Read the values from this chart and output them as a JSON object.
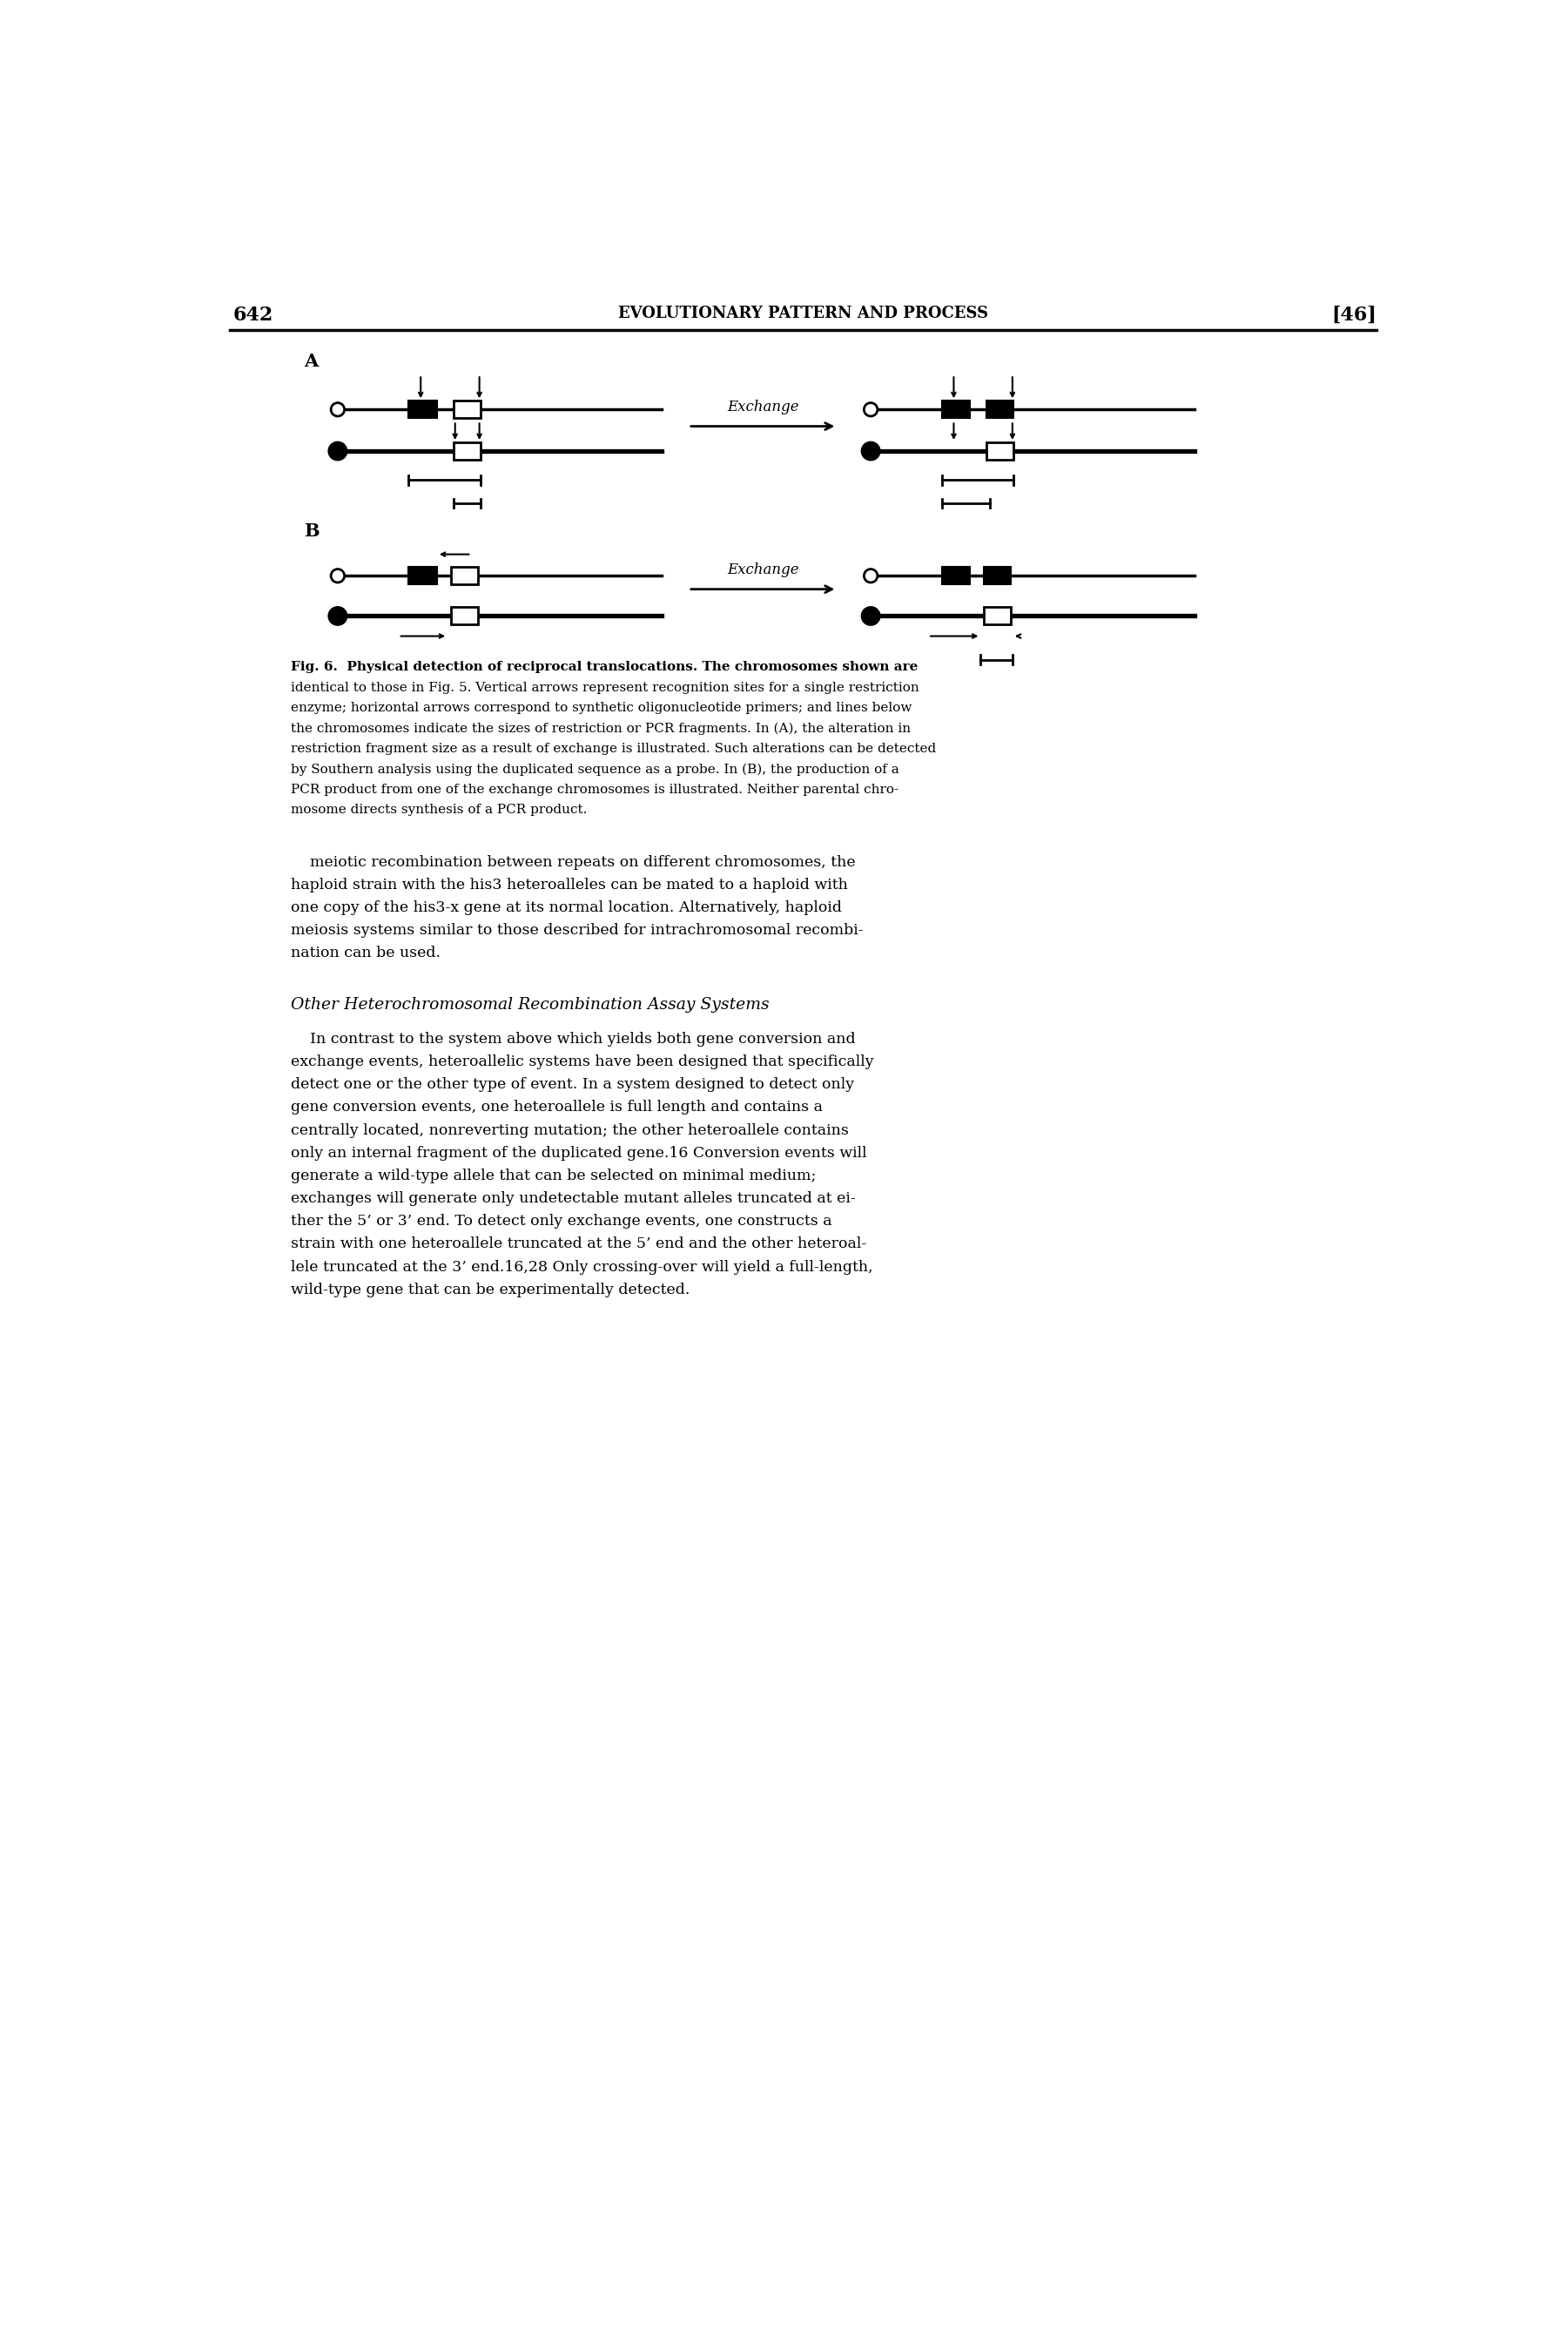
{
  "page_number_left": "642",
  "page_number_right": "[46]",
  "header_text": "EVOLUTIONARY PATTERN AND PROCESS",
  "section_title": "Other Heterochromosomal Recombination Assay Systems",
  "background_color": "#ffffff",
  "text_color": "#000000",
  "fig_caption_lines": [
    "Fig. 6.  Physical detection of reciprocal translocations. The chromosomes shown are",
    "identical to those in Fig. 5. Vertical arrows represent recognition sites for a single restriction",
    "enzyme; horizontal arrows correspond to synthetic oligonucleotide primers; and lines below",
    "the chromosomes indicate the sizes of restriction or PCR fragments. In (A), the alteration in",
    "restriction fragment size as a result of exchange is illustrated. Such alterations can be detected",
    "by Southern analysis using the duplicated sequence as a probe. In (B), the production of a",
    "PCR product from one of the exchange chromosomes is illustrated. Neither parental chro-",
    "mosome directs synthesis of a PCR product."
  ],
  "body1_lines": [
    "meiotic recombination between repeats on different chromosomes, the",
    "haploid strain with the his3 heteroalleles can be mated to a haploid with",
    "one copy of the his3-x gene at its normal location. Alternatively, haploid",
    "meiosis systems similar to those described for intrachromosomal recombi-",
    "nation can be used."
  ],
  "body2_lines": [
    "    In contrast to the system above which yields both gene conversion and",
    "exchange events, heteroallelic systems have been designed that specifically",
    "detect one or the other type of event. In a system designed to detect only",
    "gene conversion events, one heteroallele is full length and contains a",
    "centrally located, nonreverting mutation; the other heteroallele contains",
    "only an internal fragment of the duplicated gene.16 Conversion events will",
    "generate a wild-type allele that can be selected on minimal medium;",
    "exchanges will generate only undetectable mutant alleles truncated at ei-",
    "ther the 5’ or 3’ end. To detect only exchange events, one constructs a",
    "strain with one heteroallele truncated at the 5’ end and the other heteroal-",
    "lele truncated at the 3’ end.16,28 Only crossing-over will yield a full-length,",
    "wild-type gene that can be experimentally detected."
  ]
}
